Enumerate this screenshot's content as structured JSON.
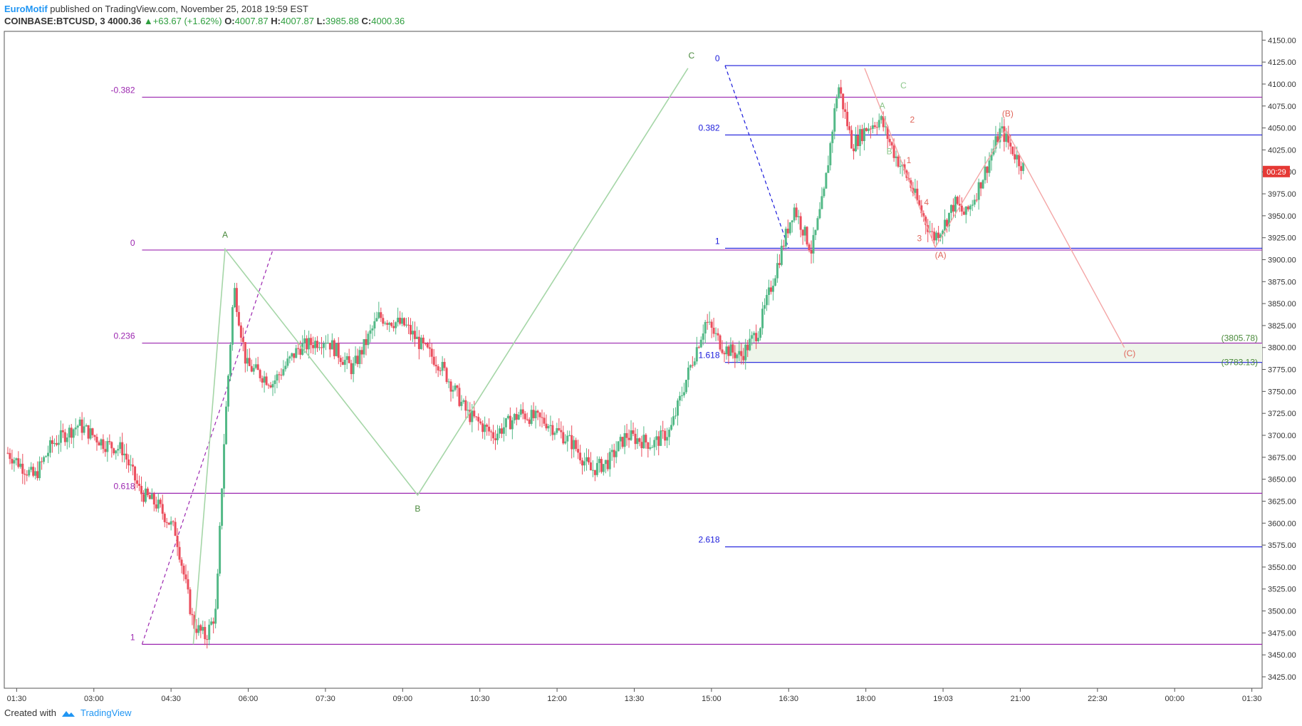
{
  "header": {
    "brand": "EuroMotif",
    "published": " published on TradingView.com, November 25, 2018 19:59 EST",
    "symbol": "COINBASE:BTCUSD, 3",
    "last": "4000.36",
    "change": "+63.67 (+1.62%)",
    "o_label": "O:",
    "o_value": "4007.87",
    "h_label": "H:",
    "h_value": "4007.87",
    "l_label": "L:",
    "l_value": "3985.88",
    "c_label": "C:",
    "c_value": "4000.36"
  },
  "footer": {
    "created_with": "Created with",
    "brand": "TradingView"
  },
  "colors": {
    "up": "#53b987",
    "down": "#eb4d5c",
    "fib1": "#9c27b0",
    "fib2": "#1a1adb",
    "wave_green": "#a5d6a7",
    "wave_red": "#f4a6a6",
    "price_tag": "#e53935",
    "zone": "#eef5ea"
  },
  "chart_data": {
    "type": "candlestick",
    "ylim": [
      3412,
      4160
    ],
    "x_ticks": [
      "01:30",
      "03:00",
      "04:30",
      "06:00",
      "07:30",
      "09:00",
      "10:30",
      "12:00",
      "13:30",
      "15:00",
      "16:30",
      "18:00",
      "19:03",
      "21:00",
      "22:30",
      "00:00",
      "01:30"
    ],
    "y_ticks": [
      4150,
      4125,
      4100,
      4075,
      4050,
      4025,
      4000,
      3975,
      3950,
      3925,
      3900,
      3875,
      3850,
      3825,
      3800,
      3775,
      3750,
      3725,
      3700,
      3675,
      3650,
      3625,
      3600,
      3575,
      3550,
      3525,
      3500,
      3475,
      3450,
      3425
    ],
    "price_tag": {
      "value": 4000.36,
      "label": "00:29"
    },
    "price_path": [
      [
        0,
        3680
      ],
      [
        15,
        3652
      ],
      [
        25,
        3690
      ],
      [
        40,
        3712
      ],
      [
        55,
        3690
      ],
      [
        65,
        3684
      ],
      [
        75,
        3635
      ],
      [
        85,
        3620
      ],
      [
        95,
        3590
      ],
      [
        105,
        3485
      ],
      [
        112,
        3470
      ],
      [
        118,
        3500
      ],
      [
        122,
        3680
      ],
      [
        128,
        3870
      ],
      [
        135,
        3780
      ],
      [
        150,
        3760
      ],
      [
        165,
        3800
      ],
      [
        180,
        3810
      ],
      [
        195,
        3775
      ],
      [
        210,
        3835
      ],
      [
        225,
        3825
      ],
      [
        235,
        3800
      ],
      [
        245,
        3780
      ],
      [
        260,
        3725
      ],
      [
        275,
        3700
      ],
      [
        290,
        3725
      ],
      [
        305,
        3715
      ],
      [
        320,
        3690
      ],
      [
        330,
        3660
      ],
      [
        340,
        3670
      ],
      [
        350,
        3700
      ],
      [
        365,
        3690
      ],
      [
        375,
        3705
      ],
      [
        385,
        3770
      ],
      [
        395,
        3830
      ],
      [
        405,
        3800
      ],
      [
        415,
        3790
      ],
      [
        425,
        3820
      ],
      [
        435,
        3890
      ],
      [
        445,
        3960
      ],
      [
        455,
        3910
      ],
      [
        462,
        3975
      ],
      [
        470,
        4100
      ],
      [
        478,
        4030
      ],
      [
        486,
        4050
      ],
      [
        494,
        4060
      ],
      [
        502,
        4020
      ],
      [
        510,
        3990
      ],
      [
        518,
        3950
      ],
      [
        524,
        3925
      ],
      [
        530,
        3940
      ],
      [
        536,
        3965
      ],
      [
        542,
        3950
      ],
      [
        548,
        3975
      ],
      [
        555,
        4010
      ],
      [
        562,
        4048
      ],
      [
        570,
        4020
      ],
      [
        575,
        4005
      ]
    ],
    "fib_retracement": [
      {
        "label": "-0.382",
        "value": 4085
      },
      {
        "label": "0",
        "value": 3911
      },
      {
        "label": "0.236",
        "value": 3805
      },
      {
        "label": "0.618",
        "value": 3634
      },
      {
        "label": "1",
        "value": 3462
      }
    ],
    "fib_extension": [
      {
        "label": "0",
        "value": 4121
      },
      {
        "label": "0.382",
        "value": 4042
      },
      {
        "label": "1",
        "value": 3913
      },
      {
        "label": "1.618",
        "value": 3783
      },
      {
        "label": "2.618",
        "value": 3573
      }
    ],
    "target_zone": [
      {
        "label": "(3805.78)",
        "value": 3805.78
      },
      {
        "label": "(3783.13)",
        "value": 3783.13
      }
    ],
    "wave_green_path": [
      [
        105,
        3462
      ],
      [
        123,
        3912
      ],
      [
        232,
        3632
      ],
      [
        385,
        4118
      ]
    ],
    "wave_red_path": [
      [
        485,
        4118
      ],
      [
        525,
        3914
      ],
      [
        565,
        4048
      ],
      [
        632,
        3800
      ]
    ],
    "wave_labels": [
      {
        "text": "A",
        "t": 123,
        "v": 3925,
        "color": "green"
      },
      {
        "text": "B",
        "t": 232,
        "v": 3613,
        "color": "green"
      },
      {
        "text": "C",
        "t": 387,
        "v": 4129,
        "color": "green"
      },
      {
        "text": "A",
        "t": 495,
        "v": 4072,
        "color": "lgreen"
      },
      {
        "text": "B",
        "t": 499,
        "v": 4020,
        "color": "lgreen"
      },
      {
        "text": "C",
        "t": 507,
        "v": 4095,
        "color": "lgreen"
      },
      {
        "text": "1",
        "t": 510,
        "v": 4010,
        "color": "red"
      },
      {
        "text": "2",
        "t": 512,
        "v": 4056,
        "color": "red"
      },
      {
        "text": "4",
        "t": 520,
        "v": 3962,
        "color": "red"
      },
      {
        "text": "3",
        "t": 516,
        "v": 3921,
        "color": "red"
      },
      {
        "text": "(A)",
        "t": 528,
        "v": 3902,
        "color": "red"
      },
      {
        "text": "(B)",
        "t": 566,
        "v": 4063,
        "color": "red"
      },
      {
        "text": "(C)",
        "t": 635,
        "v": 3790,
        "color": "red"
      }
    ]
  }
}
